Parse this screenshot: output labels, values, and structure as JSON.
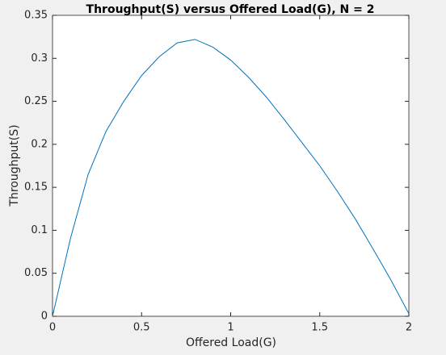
{
  "chart_data": {
    "type": "line",
    "title": "Throughput(S) versus Offered Load(G), N = 2",
    "x_label": "Offered Load(G)",
    "y_label": "Throughput(S)",
    "x": [
      0,
      0.1,
      0.2,
      0.3,
      0.4,
      0.5,
      0.6,
      0.7,
      0.8,
      0.9,
      1.0,
      1.1,
      1.2,
      1.3,
      1.4,
      1.5,
      1.6,
      1.7,
      1.8,
      1.9,
      2.0
    ],
    "series": [
      {
        "name": "S",
        "color": "#0072bd",
        "values": [
          0,
          0.09,
          0.165,
          0.215,
          0.25,
          0.28,
          0.302,
          0.318,
          0.322,
          0.313,
          0.298,
          0.278,
          0.255,
          0.229,
          0.202,
          0.175,
          0.145,
          0.113,
          0.078,
          0.042,
          0.003
        ]
      }
    ],
    "xlim": [
      0,
      2
    ],
    "xticks": [
      0,
      0.5,
      1,
      1.5,
      2
    ],
    "ylim": [
      0,
      0.35
    ],
    "yticks": [
      0,
      0.05,
      0.1,
      0.15,
      0.2,
      0.25,
      0.3,
      0.35
    ]
  }
}
